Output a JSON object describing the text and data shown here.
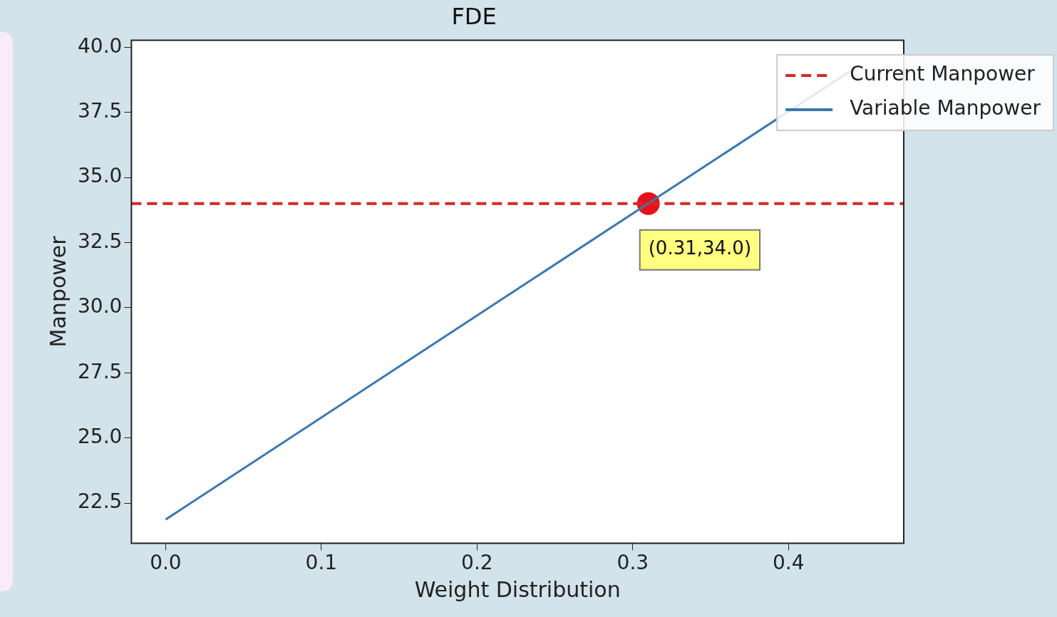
{
  "chart_data": {
    "type": "line",
    "title": "FDE",
    "xlabel": "Weight Distribution",
    "ylabel": "Manpower",
    "xlim": [
      -0.022,
      0.474
    ],
    "xticks": [
      {
        "value": 0,
        "label": "0.0"
      },
      0.1,
      0.2,
      0.3,
      0.4
    ],
    "ylim": [
      20.96,
      40.27
    ],
    "yticks": [
      22.5,
      {
        "value": 25,
        "label": "25.0"
      },
      27.5,
      {
        "value": 30,
        "label": "30.0"
      },
      32.5,
      {
        "value": 35,
        "label": "35.0"
      },
      37.5,
      {
        "value": 40,
        "label": "40.0"
      }
    ],
    "legend": "top right",
    "series": [
      {
        "name": "Variable Manpower",
        "x": [
          0,
          0.44
        ],
        "values": [
          21.87,
          39.1
        ],
        "color": "#3a78b0",
        "line_style": "solid"
      },
      {
        "type": "scatter",
        "x": [
          0.31
        ],
        "values": [
          34.0
        ],
        "color": "#e8101a",
        "marker": "circle"
      }
    ],
    "ref_lines": [
      {
        "axis": "y",
        "value": 34.0,
        "label": "Current Manpower",
        "color": "#d62728",
        "line_style": "dashed"
      }
    ],
    "annotations": [
      {
        "text": "(0.31,34.0)",
        "x": 0.31,
        "y": 34.0
      }
    ]
  }
}
